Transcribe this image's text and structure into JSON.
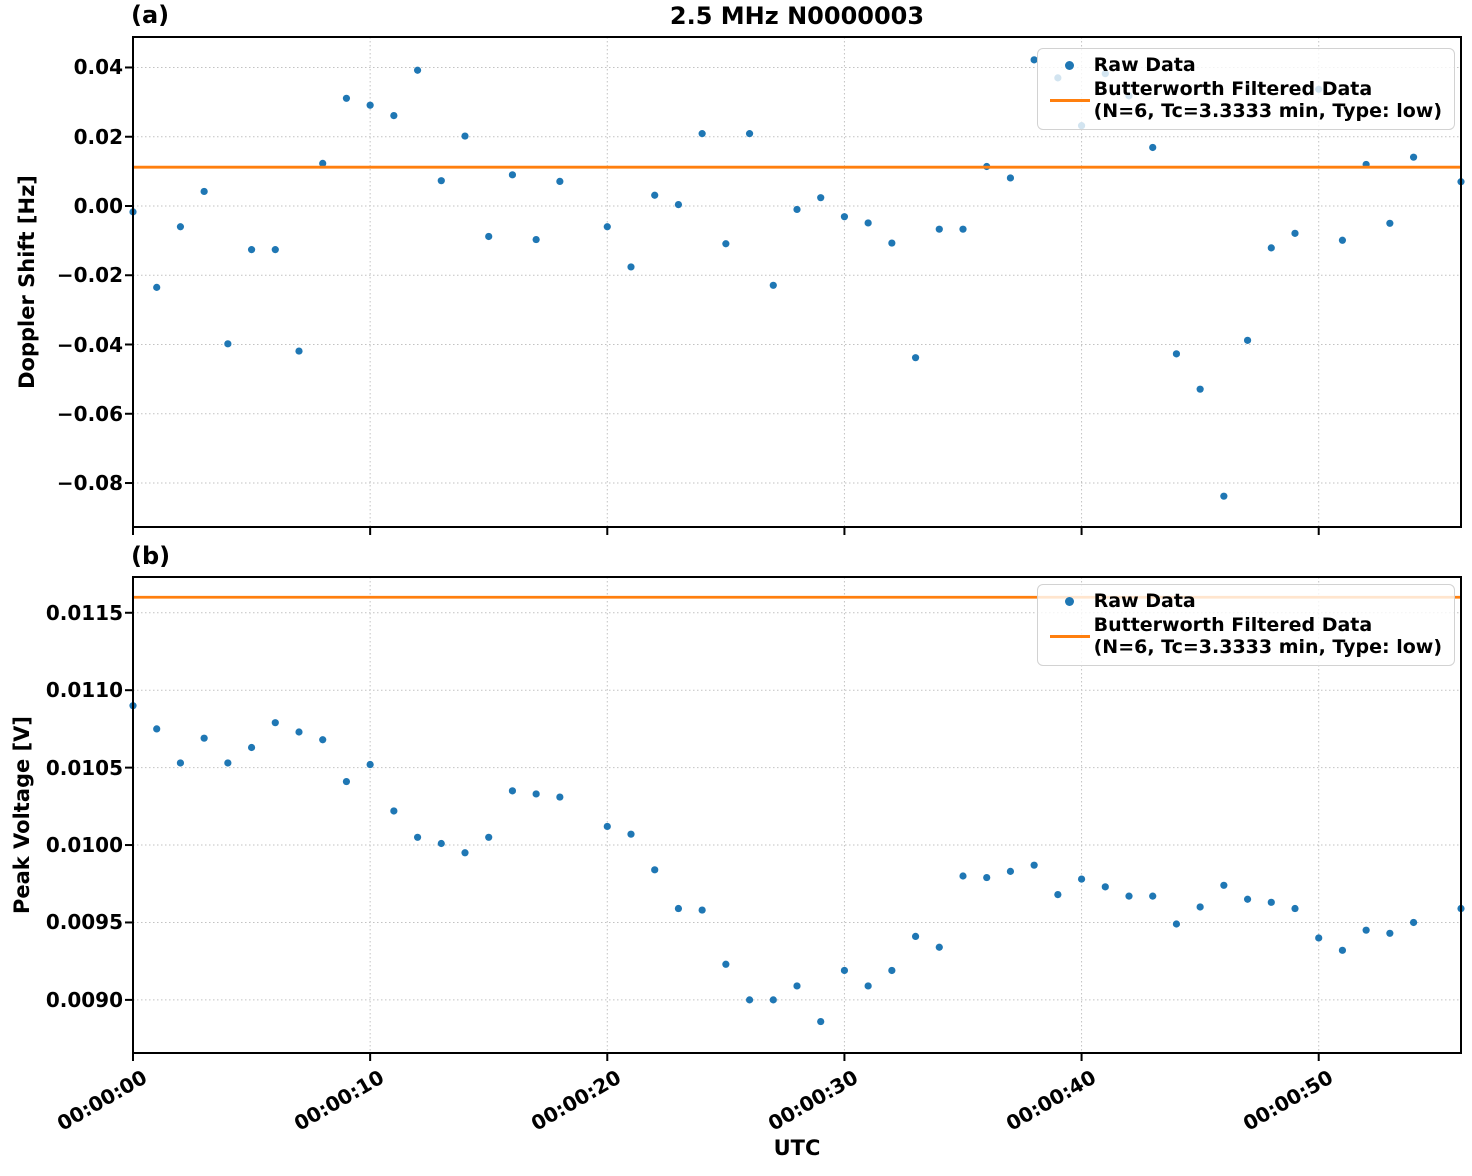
{
  "figure": {
    "title": "2.5 MHz N0000003",
    "panel_a_tag": "(a)",
    "panel_b_tag": "(b)",
    "xlabel": "UTC"
  },
  "legend": {
    "raw_label": "Raw Data",
    "filtered_label": "Butterworth Filtered Data",
    "filtered_params": "(N=6, Tc=3.3333 min, Type: low)"
  },
  "colors": {
    "raw_point": "#1f77b4",
    "filtered_line": "#ff7f0e",
    "grid": "#c2c2c2",
    "spine": "#000000"
  },
  "chart_data": [
    {
      "id": "a",
      "type": "scatter",
      "title": "2.5 MHz N0000003",
      "ylabel": "Doppler Shift [Hz]",
      "xlabel": "UTC",
      "grid": true,
      "legend_position": "upper right",
      "xlim": [
        0,
        56
      ],
      "ylim": [
        -0.0927,
        0.0488
      ],
      "xtick_seconds": [
        0,
        10,
        20,
        30,
        40,
        50
      ],
      "xtick_labels": [
        "00:00:00",
        "00:00:10",
        "00:00:20",
        "00:00:30",
        "00:00:40",
        "00:00:50"
      ],
      "show_xtick_labels": false,
      "ytick_values": [
        0.04,
        0.02,
        0.0,
        -0.02,
        -0.04,
        -0.06,
        -0.08
      ],
      "ytick_labels": [
        "0.04",
        "0.02",
        "0.00",
        "−0.02",
        "−0.04",
        "−0.06",
        "−0.08"
      ],
      "x_seconds": [
        0,
        1,
        2,
        3,
        4,
        5,
        6,
        7,
        8,
        9,
        10,
        11,
        12,
        13,
        14,
        15,
        16,
        17,
        18,
        20,
        21,
        22,
        23,
        24,
        25,
        26,
        27,
        28,
        29,
        30,
        31,
        32,
        33,
        34,
        35,
        36,
        37,
        38,
        39,
        40,
        41,
        42,
        43,
        44,
        45,
        46,
        47,
        48,
        49,
        50,
        51,
        52,
        53,
        54,
        56
      ],
      "series": [
        {
          "name": "Raw Data",
          "type": "scatter",
          "values": [
            -0.0017,
            -0.0235,
            -0.006,
            0.0042,
            -0.0398,
            -0.0126,
            -0.0126,
            -0.0419,
            0.0123,
            0.0311,
            0.0291,
            0.0261,
            0.0392,
            0.0073,
            0.0202,
            -0.0088,
            0.009,
            -0.0097,
            0.0071,
            -0.006,
            -0.0176,
            0.0031,
            0.0004,
            0.0209,
            -0.0109,
            0.0209,
            -0.0229,
            -0.001,
            0.0024,
            -0.0031,
            -0.0049,
            -0.0107,
            -0.0438,
            -0.0067,
            -0.0067,
            0.0114,
            0.0081,
            0.0422,
            0.037,
            0.0232,
            0.0382,
            0.0318,
            0.0169,
            -0.0427,
            -0.0529,
            -0.0838,
            -0.0388,
            -0.0121,
            -0.0079,
            0.0337,
            -0.0099,
            0.012,
            -0.005,
            0.0141,
            0.007
          ]
        },
        {
          "name": "Butterworth Filtered Data (N=6, Tc=3.3333 min, Type: low)",
          "type": "line",
          "constant_value": 0.0112
        }
      ]
    },
    {
      "id": "b",
      "type": "scatter",
      "title": "",
      "ylabel": "Peak Voltage [V]",
      "xlabel": "UTC",
      "grid": true,
      "legend_position": "upper right",
      "xlim": [
        0,
        56
      ],
      "ylim": [
        0.008657,
        0.011731
      ],
      "xtick_seconds": [
        0,
        10,
        20,
        30,
        40,
        50
      ],
      "xtick_labels": [
        "00:00:00",
        "00:00:10",
        "00:00:20",
        "00:00:30",
        "00:00:40",
        "00:00:50"
      ],
      "show_xtick_labels": true,
      "ytick_values": [
        0.0115,
        0.011,
        0.0105,
        0.01,
        0.0095,
        0.009
      ],
      "ytick_labels": [
        "0.0115",
        "0.0110",
        "0.0105",
        "0.0100",
        "0.0095",
        "0.0090"
      ],
      "x_seconds": [
        0,
        1,
        2,
        3,
        4,
        5,
        6,
        7,
        8,
        9,
        10,
        11,
        12,
        13,
        14,
        15,
        16,
        17,
        18,
        20,
        21,
        22,
        23,
        24,
        25,
        26,
        27,
        28,
        29,
        30,
        31,
        32,
        33,
        34,
        35,
        36,
        37,
        38,
        39,
        40,
        41,
        42,
        43,
        44,
        45,
        46,
        47,
        48,
        49,
        50,
        51,
        52,
        53,
        54,
        56
      ],
      "series": [
        {
          "name": "Raw Data",
          "type": "scatter",
          "values": [
            0.0109,
            0.01075,
            0.01053,
            0.01069,
            0.01053,
            0.01063,
            0.01079,
            0.01073,
            0.01068,
            0.01041,
            0.01052,
            0.01022,
            0.01005,
            0.01001,
            0.00995,
            0.01005,
            0.01035,
            0.01033,
            0.01031,
            0.01012,
            0.01007,
            0.00984,
            0.00959,
            0.00958,
            0.00923,
            0.009,
            0.009,
            0.00909,
            0.00886,
            0.00919,
            0.00909,
            0.00919,
            0.00941,
            0.00934,
            0.0098,
            0.00979,
            0.00983,
            0.00987,
            0.00968,
            0.00978,
            0.00973,
            0.00967,
            0.00967,
            0.00949,
            0.0096,
            0.00974,
            0.00965,
            0.00963,
            0.00959,
            0.0094,
            0.00932,
            0.00945,
            0.00943,
            0.0095,
            0.00959
          ]
        },
        {
          "name": "Butterworth Filtered Data (N=6, Tc=3.3333 min, Type: low)",
          "type": "line",
          "constant_value": 0.0116
        }
      ]
    }
  ]
}
